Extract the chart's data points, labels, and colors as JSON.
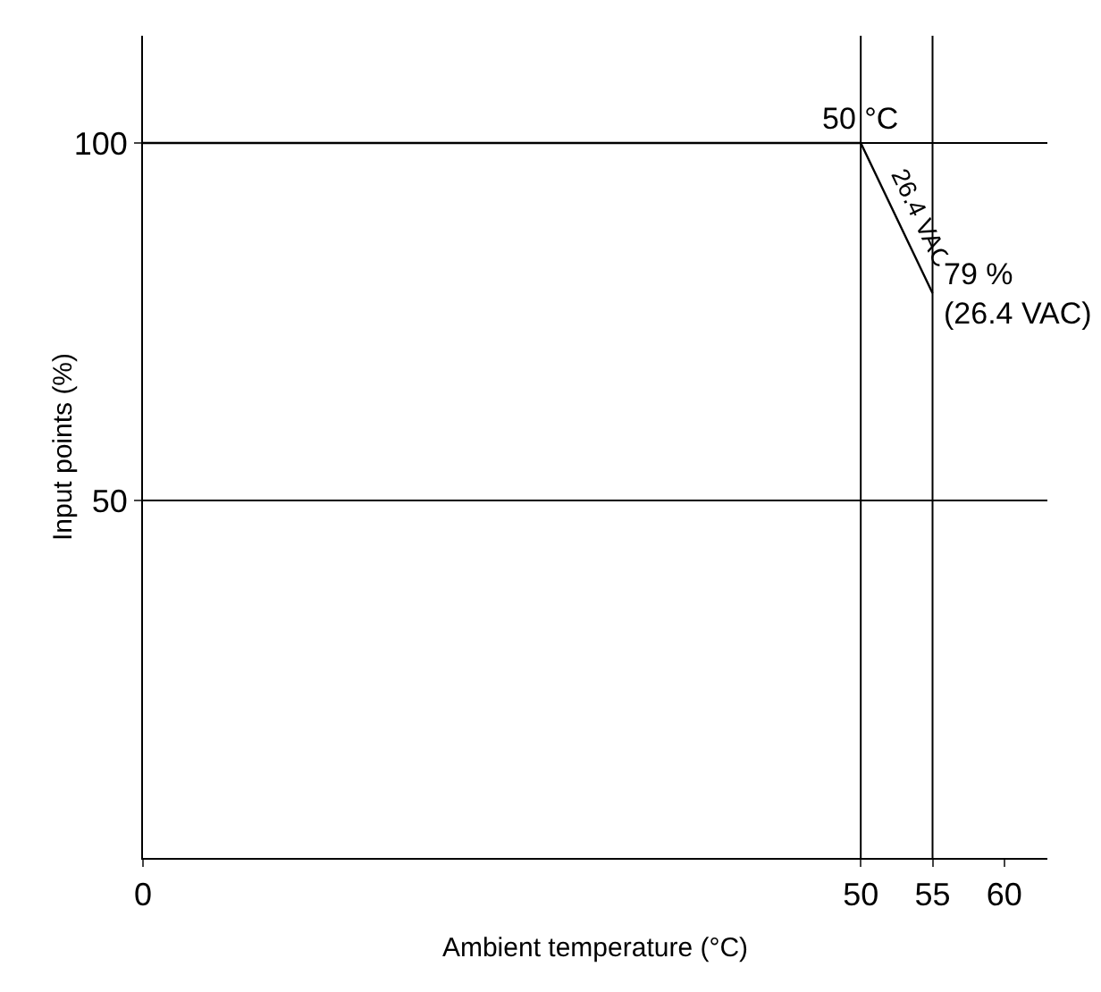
{
  "chart_data": {
    "type": "line",
    "xlabel": "Ambient temperature (°C)",
    "ylabel": "Input points (%)",
    "x": [
      0,
      50,
      55
    ],
    "series": [
      {
        "color": "#000000",
        "values": [
          100,
          100,
          79
        ]
      }
    ],
    "xlim": [
      0,
      63
    ],
    "xticks": [
      0,
      50,
      55,
      60
    ],
    "ylim": [
      0,
      115
    ],
    "yticks": [
      50,
      100
    ],
    "grid": "y",
    "marker": "none",
    "line_style": "solid",
    "ref_lines": [
      {
        "axis": "x",
        "value": 50
      },
      {
        "axis": "x",
        "value": 55
      }
    ],
    "annotations": [
      {
        "text": "50 °C",
        "x": 50,
        "y": 100
      },
      {
        "text": "26.4 VAC",
        "x": 52.5,
        "y": 89.5
      },
      {
        "text": "79 %\n(26.4 VAC)",
        "x": 55,
        "y": 79
      }
    ]
  }
}
